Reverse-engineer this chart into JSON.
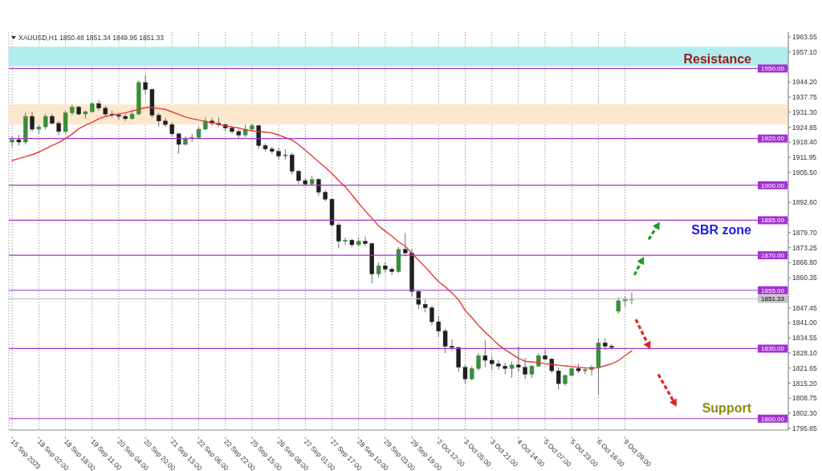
{
  "chart_data": {
    "type": "candlestick",
    "title": "XAUUSD,H1 1850.48 1851.34 1849.95 1851.33",
    "categories": [
      "15 Sep 2023",
      null,
      null,
      null,
      "18 Sep 02:00",
      null,
      null,
      null,
      "18 Sep 18:00",
      null,
      null,
      null,
      "19 Sep 11:00",
      null,
      null,
      null,
      "20 Sep 04:00",
      null,
      null,
      null,
      "20 Sep 20:00",
      null,
      null,
      null,
      "21 Sep 13:00",
      null,
      null,
      null,
      "22 Sep 06:00",
      null,
      null,
      null,
      "22 Sep 22:00",
      null,
      null,
      null,
      "25 Sep 15:00",
      null,
      null,
      null,
      "26 Sep 08:00",
      null,
      null,
      null,
      "27 Sep 01:00",
      null,
      null,
      null,
      "27 Sep 17:00",
      null,
      null,
      null,
      "28 Sep 10:00",
      null,
      null,
      null,
      "29 Sep 03:00",
      null,
      null,
      null,
      "29 Sep 19:00",
      null,
      null,
      null,
      "2 Oct 12:00",
      null,
      null,
      null,
      "3 Oct 05:00",
      null,
      null,
      null,
      "3 Oct 21:00",
      null,
      null,
      null,
      "4 Oct 14:00",
      null,
      null,
      null,
      "5 Oct 07:00",
      null,
      null,
      null,
      "5 Oct 23:00",
      null,
      null,
      null,
      "6 Oct 16:00",
      null,
      null,
      null,
      "9 Oct 09:00",
      null,
      null,
      null,
      null,
      null,
      null,
      null,
      null,
      null,
      null,
      null,
      null,
      null,
      null,
      null,
      null,
      null,
      null,
      null,
      null,
      null,
      null,
      null,
      null
    ],
    "ohlc": [
      [
        1918.5,
        1921,
        1916.5,
        1919.5
      ],
      [
        1919.5,
        1921.5,
        1917,
        1918.5
      ],
      [
        1918.5,
        1931,
        1917.5,
        1929.5
      ],
      [
        1929.5,
        1931.5,
        1923,
        1924
      ],
      [
        1924,
        1926,
        1922,
        1925
      ],
      [
        1925,
        1930.5,
        1924,
        1929.5
      ],
      [
        1929.5,
        1930.5,
        1926,
        1926.5
      ],
      [
        1926.5,
        1927.5,
        1921.5,
        1923
      ],
      [
        1923,
        1932,
        1922,
        1931
      ],
      [
        1931,
        1934.5,
        1930,
        1933.5
      ],
      [
        1933.5,
        1934,
        1930,
        1930.5
      ],
      [
        1930.5,
        1932,
        1928.5,
        1931.5
      ],
      [
        1931.5,
        1935.5,
        1931,
        1935
      ],
      [
        1935,
        1936.5,
        1932,
        1933
      ],
      [
        1933,
        1934,
        1929.5,
        1930.5
      ],
      [
        1930.5,
        1932,
        1929,
        1930
      ],
      [
        1930,
        1931,
        1928,
        1929.5
      ],
      [
        1929.5,
        1930.5,
        1927.5,
        1928.5
      ],
      [
        1928.5,
        1932,
        1928,
        1930.5
      ],
      [
        1930.5,
        1945,
        1930,
        1944
      ],
      [
        1944,
        1947,
        1939,
        1941
      ],
      [
        1941,
        1941.5,
        1929,
        1930
      ],
      [
        1930,
        1931,
        1925,
        1927.5
      ],
      [
        1927.5,
        1929,
        1925,
        1926
      ],
      [
        1926,
        1927,
        1921,
        1922
      ],
      [
        1922,
        1922.5,
        1913.5,
        1917.5
      ],
      [
        1917.5,
        1921,
        1917,
        1920
      ],
      [
        1920,
        1922,
        1918.5,
        1920.5
      ],
      [
        1920.5,
        1925,
        1920,
        1924
      ],
      [
        1924,
        1929,
        1923.5,
        1927.5
      ],
      [
        1927.5,
        1929,
        1925.5,
        1926.5
      ],
      [
        1926.5,
        1929,
        1925,
        1926
      ],
      [
        1926,
        1926.5,
        1923,
        1924.5
      ],
      [
        1924.5,
        1925,
        1922,
        1923
      ],
      [
        1923,
        1924,
        1920,
        1921.5
      ],
      [
        1921.5,
        1926,
        1920.5,
        1924
      ],
      [
        1924,
        1926.5,
        1923,
        1925.5
      ],
      [
        1925.5,
        1926,
        1915.5,
        1917
      ],
      [
        1917,
        1918,
        1914.5,
        1915.5
      ],
      [
        1915.5,
        1916.5,
        1913.5,
        1914.5
      ],
      [
        1914.5,
        1916,
        1911,
        1912.5
      ],
      [
        1912.5,
        1915.5,
        1911,
        1913
      ],
      [
        1913,
        1914,
        1904.5,
        1906
      ],
      [
        1906,
        1906.5,
        1900.5,
        1902
      ],
      [
        1902,
        1903,
        1900,
        1900.5
      ],
      [
        1900.5,
        1904,
        1900,
        1902.5
      ],
      [
        1902.5,
        1903,
        1895.5,
        1897
      ],
      [
        1897,
        1898,
        1893,
        1894
      ],
      [
        1894,
        1894.5,
        1882,
        1883
      ],
      [
        1883,
        1884,
        1873,
        1876
      ],
      [
        1876,
        1877.5,
        1874.5,
        1876.5
      ],
      [
        1876.5,
        1877,
        1873.5,
        1874.5
      ],
      [
        1874.5,
        1877.5,
        1874,
        1876
      ],
      [
        1876,
        1878,
        1874,
        1875
      ],
      [
        1875,
        1875.5,
        1858,
        1862
      ],
      [
        1862,
        1867,
        1860.5,
        1865.5
      ],
      [
        1865.5,
        1867,
        1862.5,
        1864
      ],
      [
        1864,
        1865,
        1861.5,
        1863
      ],
      [
        1863,
        1873.5,
        1862.5,
        1872.5
      ],
      [
        1872.5,
        1879.5,
        1869.5,
        1871
      ],
      [
        1871,
        1872.5,
        1852.5,
        1854.5
      ],
      [
        1854.5,
        1855,
        1847,
        1849
      ],
      [
        1849,
        1851,
        1845.5,
        1847.5
      ],
      [
        1847.5,
        1848.5,
        1840,
        1841.5
      ],
      [
        1841.5,
        1844,
        1835,
        1837.5
      ],
      [
        1837.5,
        1838.5,
        1828,
        1831
      ],
      [
        1831,
        1834,
        1829,
        1830.5
      ],
      [
        1830.5,
        1831,
        1820,
        1822
      ],
      [
        1822,
        1823,
        1815,
        1817
      ],
      [
        1817,
        1822.5,
        1816.5,
        1821.5
      ],
      [
        1821.5,
        1828,
        1820.5,
        1827
      ],
      [
        1827,
        1833.5,
        1822,
        1825
      ],
      [
        1825,
        1826.5,
        1821,
        1823.5
      ],
      [
        1823.5,
        1825,
        1821,
        1822.5
      ],
      [
        1822.5,
        1824,
        1819,
        1821.5
      ],
      [
        1821.5,
        1824.5,
        1817.5,
        1823
      ],
      [
        1823,
        1831,
        1820,
        1822
      ],
      [
        1822,
        1826,
        1817,
        1819
      ],
      [
        1819,
        1823,
        1817.5,
        1822.5
      ],
      [
        1822.5,
        1828,
        1822,
        1827
      ],
      [
        1827,
        1829.5,
        1825,
        1825.5
      ],
      [
        1825.5,
        1826,
        1819.5,
        1820.5
      ],
      [
        1820.5,
        1822,
        1812.5,
        1815
      ],
      [
        1815,
        1819,
        1814,
        1818.5
      ],
      [
        1818.5,
        1822,
        1818,
        1821.5
      ],
      [
        1821.5,
        1823.5,
        1819.5,
        1820.5
      ],
      [
        1820.5,
        1822,
        1819,
        1821
      ],
      [
        1821,
        1823,
        1818.5,
        1822
      ],
      [
        1822,
        1834.5,
        1810.5,
        1832.5
      ],
      [
        1832.5,
        1834.5,
        1829.5,
        1831
      ],
      [
        1831,
        1832,
        1829.5,
        1830.5
      ],
      [
        1846,
        1852,
        1845,
        1850.5
      ],
      [
        1850.5,
        1852.5,
        1848,
        1851
      ],
      [
        1851,
        1854,
        1849,
        1851.33
      ],
      null,
      null,
      null,
      null,
      null,
      null,
      null,
      null,
      null,
      null,
      null,
      null,
      null,
      null,
      null,
      null,
      null,
      null,
      null,
      null,
      null,
      null,
      null
    ],
    "series": [
      {
        "type": "line",
        "color": "#e53935",
        "values": [
          1910.6,
          1911.4,
          1912.3,
          1913.1,
          1914.2,
          1915.6,
          1917.0,
          1918.3,
          1920.0,
          1921.9,
          1924.2,
          1925.7,
          1927.0,
          1928.4,
          1929.5,
          1930.0,
          1930.5,
          1931.0,
          1931.8,
          1932.5,
          1933.3,
          1933.3,
          1932.9,
          1932.5,
          1931.4,
          1930.3,
          1929.2,
          1928.5,
          1927.9,
          1927.3,
          1926.7,
          1926.1,
          1925.4,
          1925.0,
          1924.5,
          1923.8,
          1923.3,
          1923.0,
          1922.7,
          1922.4,
          1921.5,
          1920.4,
          1919.3,
          1917.4,
          1915.0,
          1912.6,
          1910.0,
          1907.6,
          1905.0,
          1902.0,
          1899.3,
          1895.9,
          1892.3,
          1889.0,
          1885.9,
          1882.6,
          1880.3,
          1878.2,
          1875.7,
          1873.9,
          1870.9,
          1867.9,
          1865.0,
          1861.8,
          1858.7,
          1856.5,
          1853.9,
          1851.0,
          1846.3,
          1843.3,
          1839.9,
          1837.0,
          1834.4,
          1831.6,
          1829.5,
          1827.7,
          1825.8,
          1824.6,
          1824.3,
          1824.0,
          1823.6,
          1823.2,
          1822.9,
          1822.6,
          1822.3,
          1822.0,
          1821.8,
          1821.7,
          1821.8,
          1822.7,
          1823.5,
          1824.9,
          1827.0,
          1829.1,
          null,
          null,
          null,
          null,
          null,
          null,
          null,
          null,
          null,
          null,
          null,
          null,
          null,
          null,
          null,
          null,
          null,
          null,
          null,
          null,
          null,
          null,
          null
        ]
      }
    ],
    "ylim": [
      1795.1,
      1965.6
    ],
    "yticks": [
      {
        "value": 1963.55,
        "label": "1963.55"
      },
      {
        "value": 1957.1,
        "label": "1957.10"
      },
      {
        "value": 1944.2,
        "label": "1944.20"
      },
      {
        "value": 1937.75,
        "label": "1937.75"
      },
      {
        "value": 1931.3,
        "label": "1931.30"
      },
      {
        "value": 1924.85,
        "label": "1924.85"
      },
      {
        "value": 1918.4,
        "label": "1918.40"
      },
      {
        "value": 1911.95,
        "label": "1911.95"
      },
      {
        "value": 1905.5,
        "label": "1905.50"
      },
      {
        "value": 1892.6,
        "label": "1892.60"
      },
      {
        "value": 1879.7,
        "label": "1879.70"
      },
      {
        "value": 1873.25,
        "label": "1873.25"
      },
      {
        "value": 1866.8,
        "label": "1866.80"
      },
      {
        "value": 1860.35,
        "label": "1860.35"
      },
      {
        "value": 1847.45,
        "label": "1847.45"
      },
      {
        "value": 1841.0,
        "label": "1841.00"
      },
      {
        "value": 1834.55,
        "label": "1834.55"
      },
      {
        "value": 1828.1,
        "label": "1828.10"
      },
      {
        "value": 1821.65,
        "label": "1821.65"
      },
      {
        "value": 1815.2,
        "label": "1815.20"
      },
      {
        "value": 1808.75,
        "label": "1808.75"
      },
      {
        "value": 1802.3,
        "label": "1802.30"
      },
      {
        "value": 1795.85,
        "label": "1795.85"
      }
    ],
    "grid": "x",
    "ref_lines": [
      {
        "axis": "y",
        "value": 1950,
        "label": "1950.00",
        "color": "#a332d2"
      },
      {
        "axis": "y",
        "value": 1920,
        "label": "1920.00",
        "color": "#a332d2"
      },
      {
        "axis": "y",
        "value": 1900,
        "label": "1900.00",
        "color": "#a332d2"
      },
      {
        "axis": "y",
        "value": 1885,
        "label": "1885.00",
        "color": "#a332d2"
      },
      {
        "axis": "y",
        "value": 1870,
        "label": "1870.00",
        "color": "#a332d2"
      },
      {
        "axis": "y",
        "value": 1855,
        "label": "1855.00",
        "color": "#a332d2"
      },
      {
        "axis": "y",
        "value": 1830,
        "label": "1830.00",
        "color": "#a332d2"
      },
      {
        "axis": "y",
        "value": 1800,
        "label": "1800.00",
        "color": "#a332d2"
      },
      {
        "axis": "y",
        "value": 1851.33,
        "label": "1851.33",
        "color": "#c4c4c4"
      }
    ],
    "bands": [
      {
        "axis": "y",
        "from": 1951,
        "to": 1959.3,
        "color": "#b2ecee"
      },
      {
        "axis": "y",
        "from": 1926,
        "to": 1934.7,
        "color": "#fde8cf"
      }
    ],
    "annotations": [
      "Resistance",
      "SBR zone",
      "Support"
    ]
  }
}
